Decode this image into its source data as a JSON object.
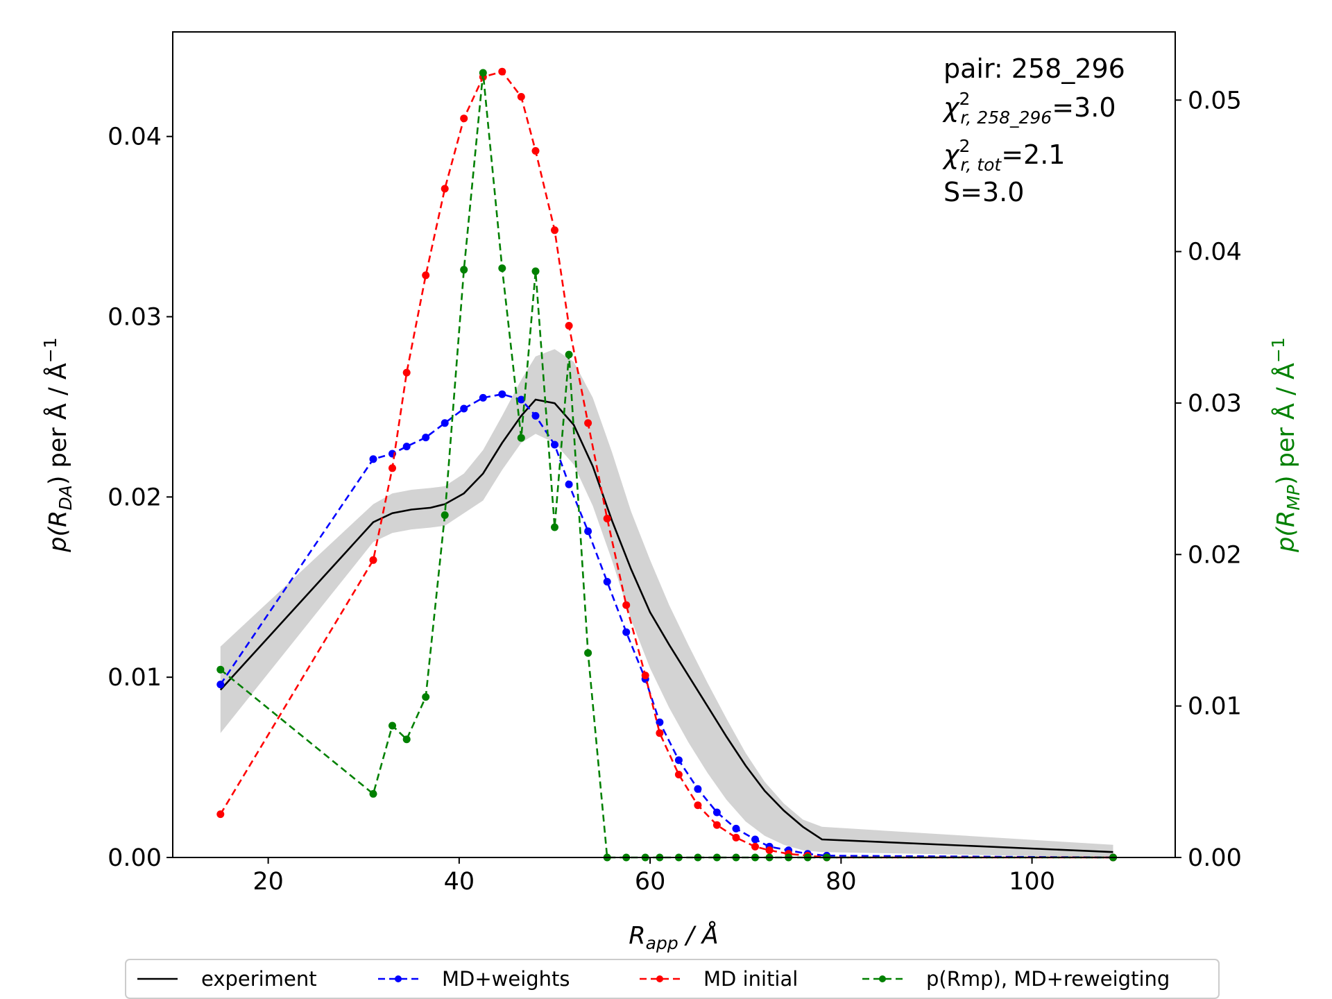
{
  "chart_data": {
    "type": "line",
    "xlabel": "R",
    "xlabel_sub": "app",
    "xlabel_unit": " / Å",
    "ylabel_left": {
      "pre": "p(R",
      "sub": "DA",
      "post": ") per Å / Å",
      "sup": "−1"
    },
    "ylabel_right": {
      "pre": "p(R",
      "sub": "MP",
      "post": ") per Å / Å",
      "sup": "−1"
    },
    "xlim": [
      10,
      115
    ],
    "ylim_left": [
      0,
      0.0458
    ],
    "ylim_right": [
      0,
      0.0545
    ],
    "x_ticks": [
      20,
      40,
      60,
      80,
      100
    ],
    "x_tick_labels": [
      "20",
      "40",
      "60",
      "80",
      "100"
    ],
    "y_ticks_left": [
      0,
      0.01,
      0.02,
      0.03,
      0.04
    ],
    "y_tick_labels_left": [
      "0.00",
      "0.01",
      "0.02",
      "0.03",
      "0.04"
    ],
    "y_ticks_right": [
      0,
      0.01,
      0.02,
      0.03,
      0.04,
      0.05
    ],
    "y_tick_labels_right": [
      "0.00",
      "0.01",
      "0.02",
      "0.03",
      "0.04",
      "0.05"
    ],
    "grid": false,
    "legend_position": "bottom-outside",
    "annotations": {
      "pair": "pair: 258_296",
      "chi_pair": {
        "sym": "χ",
        "sup": "2",
        "sub": "r, 258_296",
        "val": "=3.0"
      },
      "chi_tot": {
        "sym": "χ",
        "sup": "2",
        "sub": "r, tot",
        "val": "=2.1"
      },
      "s": "S=3.0"
    },
    "experiment_band": {
      "x": [
        15,
        31,
        33,
        35,
        37,
        38.5,
        40.5,
        42.5,
        44.5,
        46.5,
        48,
        50,
        52,
        54,
        56,
        58,
        60,
        62,
        64,
        66,
        68,
        70,
        72,
        74,
        76,
        78,
        108.5
      ],
      "upper": [
        0.0117,
        0.0196,
        0.0202,
        0.0204,
        0.0205,
        0.0206,
        0.0213,
        0.0226,
        0.0245,
        0.0265,
        0.0278,
        0.0282,
        0.0275,
        0.0255,
        0.0225,
        0.0192,
        0.0165,
        0.014,
        0.0118,
        0.0097,
        0.0077,
        0.0058,
        0.0042,
        0.003,
        0.0021,
        0.0017,
        0.0007
      ],
      "lower": [
        0.0069,
        0.0175,
        0.018,
        0.0182,
        0.0183,
        0.0184,
        0.0191,
        0.0198,
        0.0215,
        0.023,
        0.0235,
        0.023,
        0.0218,
        0.0195,
        0.0165,
        0.0132,
        0.0105,
        0.0083,
        0.0064,
        0.0047,
        0.0032,
        0.002,
        0.0012,
        0.0007,
        0.0004,
        0.0003,
        0.0
      ]
    },
    "series": [
      {
        "name": "experiment",
        "color": "#000000",
        "style": "solid",
        "markers": false,
        "axis": "left",
        "x": [
          15,
          31,
          33,
          35,
          37,
          38.5,
          40.5,
          42.5,
          44.5,
          46.5,
          48,
          50,
          52,
          54,
          56,
          58,
          60,
          62,
          64,
          66,
          68,
          70,
          72,
          74,
          76,
          78,
          108.5
        ],
        "y": [
          0.0093,
          0.0186,
          0.0191,
          0.0193,
          0.0194,
          0.0196,
          0.0202,
          0.0213,
          0.023,
          0.0245,
          0.0254,
          0.0252,
          0.024,
          0.0217,
          0.0187,
          0.016,
          0.0136,
          0.0118,
          0.0101,
          0.0084,
          0.0067,
          0.0051,
          0.0037,
          0.0026,
          0.0017,
          0.001,
          0.0003
        ]
      },
      {
        "name": "MD+weights",
        "color": "#0000ff",
        "style": "dashed",
        "markers": true,
        "axis": "left",
        "x": [
          15,
          31,
          33,
          34.5,
          36.5,
          38.5,
          40.5,
          42.5,
          44.5,
          46.5,
          48,
          50,
          51.5,
          53.5,
          55.5,
          57.5,
          59.5,
          61,
          63,
          65,
          67,
          69,
          71,
          72.5,
          74.5,
          76.5,
          78.5,
          108.5
        ],
        "y": [
          0.0096,
          0.0221,
          0.0224,
          0.0228,
          0.0233,
          0.0241,
          0.0249,
          0.0255,
          0.0257,
          0.0254,
          0.0245,
          0.0229,
          0.0207,
          0.0181,
          0.0153,
          0.0125,
          0.0099,
          0.0075,
          0.0054,
          0.0038,
          0.0025,
          0.0016,
          0.001,
          0.0006,
          0.0004,
          0.0002,
          0.0001,
          0.0
        ]
      },
      {
        "name": "MD initial",
        "color": "#ff0000",
        "style": "dashed",
        "markers": true,
        "axis": "left",
        "x": [
          15,
          31,
          33,
          34.5,
          36.5,
          38.5,
          40.5,
          42.5,
          44.5,
          46.5,
          48,
          50,
          51.5,
          53.5,
          55.5,
          57.5,
          59.5,
          61,
          63,
          65,
          67,
          69,
          71,
          72.5,
          74.5,
          76.5,
          78.5,
          108.5
        ],
        "y": [
          0.0024,
          0.0165,
          0.0216,
          0.0269,
          0.0323,
          0.0371,
          0.041,
          0.0433,
          0.0436,
          0.0422,
          0.0392,
          0.0348,
          0.0295,
          0.0241,
          0.0188,
          0.014,
          0.0101,
          0.0069,
          0.0046,
          0.0029,
          0.0018,
          0.0011,
          0.0006,
          0.0004,
          0.0002,
          0.0001,
          0.0,
          0.0
        ]
      },
      {
        "name": "p(Rmp), MD+reweigting",
        "color": "#008000",
        "style": "dashed",
        "markers": true,
        "axis": "right",
        "x": [
          15,
          31,
          33,
          34.5,
          36.5,
          38.5,
          40.5,
          42.5,
          44.5,
          46.5,
          48,
          50,
          51.5,
          53.5,
          55.5,
          57.5,
          59.5,
          61,
          63,
          65,
          67,
          69,
          71,
          72.5,
          74.5,
          76.5,
          78.5,
          108.5
        ],
        "y": [
          0.0124,
          0.0042,
          0.0087,
          0.0078,
          0.0106,
          0.0226,
          0.0388,
          0.0518,
          0.0389,
          0.0277,
          0.0387,
          0.0218,
          0.0332,
          0.0135,
          0.0,
          0.0,
          0.0,
          0.0,
          0.0,
          0.0,
          0.0,
          0.0,
          0.0,
          0.0,
          0.0,
          0.0,
          0.0,
          0.0
        ]
      }
    ]
  }
}
